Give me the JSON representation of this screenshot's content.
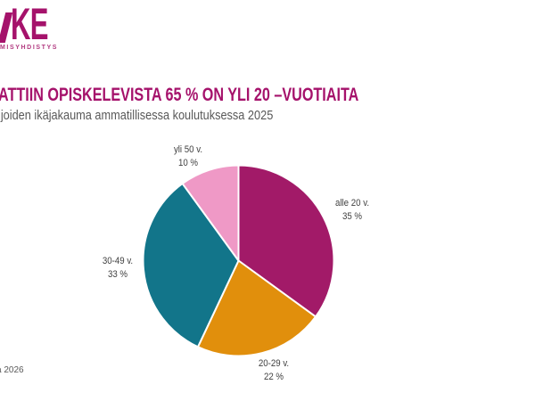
{
  "logo": {
    "text": "KE",
    "tagline": "MISYHDISTYS"
  },
  "header": {
    "title": "ATTIIN OPISKELEVISTA 65 % ON YLI 20 –VUOTIAITA",
    "subtitle": "ijoiden ikäjakauma ammatillisessa koulutuksessa 2025",
    "title_color": "#A5126B",
    "subtitle_color": "#595959"
  },
  "footer": {
    "note": "a 2026"
  },
  "chart_data": {
    "type": "pie",
    "title": "ATTIIN OPISKELEVISTA 65 % ON YLI 20 –VUOTIAITA",
    "subtitle": "ijoiden ikäjakauma ammatillisessa koulutuksessa 2025",
    "start_angle_deg": 0,
    "direction": "clockwise",
    "legend_position": "none",
    "labels": "outside",
    "slice_stroke_color": "#ffffff",
    "segments": [
      {
        "label": "alle 20 v.",
        "value": 35,
        "value_label": "35 %",
        "color": "#A21A68"
      },
      {
        "label": "20-29 v.",
        "value": 22,
        "value_label": "22 %",
        "color": "#E18F0C"
      },
      {
        "label": "30-49 v.",
        "value": 33,
        "value_label": "33 %",
        "color": "#12758A"
      },
      {
        "label": "yli 50 v.",
        "value": 10,
        "value_label": "10 %",
        "color": "#EF99C6"
      }
    ]
  }
}
